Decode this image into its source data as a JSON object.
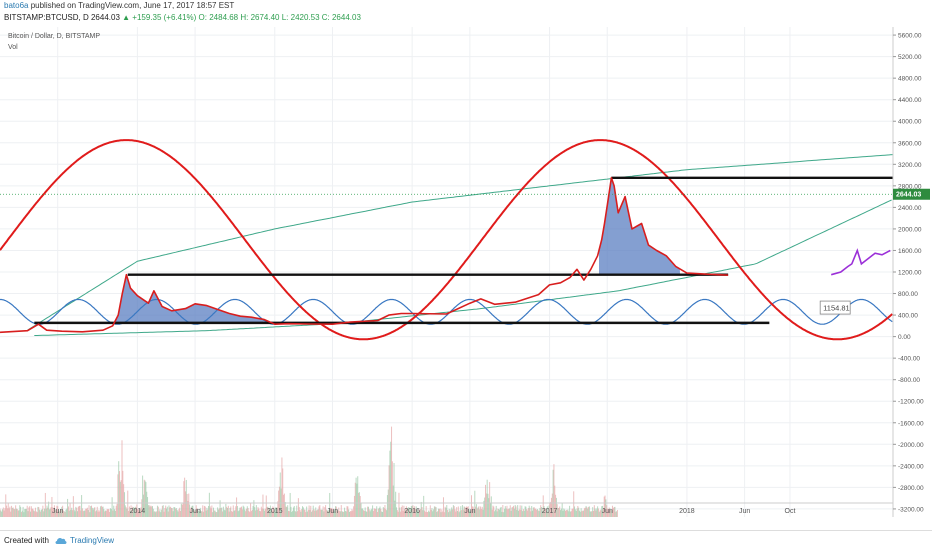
{
  "header": {
    "user": "bato6a",
    "published": "published on TradingView.com, June 17, 2017 18:57 EST",
    "symbol_line": "BITSTAMP:BTCUSD, D  2644.03",
    "change": "▲ +159.35 (+6.41%)",
    "ohlc": "O: 2484.68  H: 2674.40  L: 2420.53  C: 2644.03"
  },
  "legend": {
    "title": "Bitcoin / Dollar, D, BITSTAMP",
    "vol": "Vol"
  },
  "footer": {
    "created": "Created with",
    "brand": "TradingView"
  },
  "colors": {
    "price": "#d81e1e",
    "cycle": "#e01b1b",
    "wave": "#3a78c2",
    "arc": "#3fa88a",
    "fill": "#5b7fc2",
    "projection": "#9b30d8",
    "volume": "#9cc9a8"
  },
  "chart_data": {
    "type": "line",
    "symbol": "BITSTAMP:BTCUSD",
    "timeframe": "D",
    "yaxis": {
      "ticks": [
        "5600.00",
        "5200.00",
        "4800.00",
        "4400.00",
        "4000.00",
        "3600.00",
        "3200.00",
        "2800.00",
        "2400.00",
        "2000.00",
        "1600.00",
        "1200.00",
        "800.00",
        "400.00",
        "0.00",
        "-400.00",
        "-800.00",
        "-1200.00",
        "-1600.00",
        "-2000.00",
        "-2400.00",
        "-2800.00",
        "-3200.00"
      ],
      "ylim": [
        -3350,
        5750
      ]
    },
    "xaxis": {
      "ticks": [
        "Jun",
        "2014",
        "Jun",
        "2015",
        "Jun",
        "2016",
        "Jun",
        "2017",
        "Jun",
        "2018",
        "Jun",
        "Oct"
      ],
      "tick_dates": [
        2013.42,
        2014.0,
        2014.42,
        2015.0,
        2015.42,
        2016.0,
        2016.42,
        2017.0,
        2017.42,
        2018.0,
        2018.42,
        2018.75
      ],
      "xlim": [
        2013.0,
        2019.5
      ]
    },
    "last_price_label": "2644.03",
    "annotation": "1154.81",
    "series": [
      {
        "kind": "price",
        "points": [
          [
            2013.0,
            80
          ],
          [
            2013.2,
            110
          ],
          [
            2013.28,
            230
          ],
          [
            2013.34,
            120
          ],
          [
            2013.45,
            100
          ],
          [
            2013.6,
            90
          ],
          [
            2013.75,
            120
          ],
          [
            2013.82,
            200
          ],
          [
            2013.86,
            400
          ],
          [
            2013.89,
            800
          ],
          [
            2013.92,
            1150
          ],
          [
            2013.95,
            900
          ],
          [
            2014.0,
            760
          ],
          [
            2014.08,
            620
          ],
          [
            2014.12,
            850
          ],
          [
            2014.18,
            560
          ],
          [
            2014.25,
            480
          ],
          [
            2014.35,
            520
          ],
          [
            2014.42,
            610
          ],
          [
            2014.5,
            580
          ],
          [
            2014.58,
            510
          ],
          [
            2014.67,
            430
          ],
          [
            2014.75,
            380
          ],
          [
            2014.83,
            360
          ],
          [
            2014.92,
            320
          ],
          [
            2015.0,
            230
          ],
          [
            2015.1,
            240
          ],
          [
            2015.25,
            235
          ],
          [
            2015.42,
            230
          ],
          [
            2015.55,
            270
          ],
          [
            2015.75,
            300
          ],
          [
            2015.83,
            400
          ],
          [
            2015.92,
            430
          ],
          [
            2016.0,
            430
          ],
          [
            2016.25,
            420
          ],
          [
            2016.42,
            620
          ],
          [
            2016.5,
            700
          ],
          [
            2016.6,
            600
          ],
          [
            2016.75,
            640
          ],
          [
            2016.92,
            780
          ],
          [
            2017.0,
            960
          ],
          [
            2017.08,
            1000
          ],
          [
            2017.15,
            1100
          ],
          [
            2017.2,
            1250
          ],
          [
            2017.25,
            1050
          ],
          [
            2017.3,
            1250
          ],
          [
            2017.35,
            1500
          ],
          [
            2017.38,
            1800
          ],
          [
            2017.4,
            2100
          ],
          [
            2017.43,
            2600
          ],
          [
            2017.45,
            2950
          ],
          [
            2017.47,
            2800
          ],
          [
            2017.5,
            2300
          ],
          [
            2017.55,
            2600
          ],
          [
            2017.6,
            2000
          ],
          [
            2017.67,
            2100
          ],
          [
            2017.72,
            1700
          ],
          [
            2017.78,
            1600
          ],
          [
            2017.85,
            1500
          ],
          [
            2017.92,
            1300
          ],
          [
            2018.0,
            1180
          ],
          [
            2018.15,
            1160
          ],
          [
            2018.3,
            1140
          ]
        ]
      },
      {
        "kind": "projection",
        "points": [
          [
            2019.05,
            1150
          ],
          [
            2019.12,
            1200
          ],
          [
            2019.17,
            1300
          ],
          [
            2019.2,
            1350
          ],
          [
            2019.24,
            1600
          ],
          [
            2019.27,
            1350
          ],
          [
            2019.32,
            1450
          ],
          [
            2019.37,
            1550
          ],
          [
            2019.42,
            1520
          ],
          [
            2019.48,
            1600
          ]
        ]
      },
      {
        "kind": "horizontal_levels",
        "levels": [
          {
            "value": 2950,
            "from": 2017.45,
            "to": 2019.5
          },
          {
            "value": 1150,
            "from": 2013.93,
            "to": 2018.3
          },
          {
            "value": 255,
            "from": 2013.25,
            "to": 2018.6
          }
        ]
      },
      {
        "kind": "cycle",
        "center": 1800,
        "amplitude": 1850,
        "period": 3.45,
        "peak_at": 2013.92
      },
      {
        "kind": "wave",
        "center": 460,
        "amplitude": 230,
        "period": 0.57,
        "peak_at": 2013.0
      },
      {
        "kind": "arcs",
        "arcs": [
          {
            "points": [
              [
                2013.2,
                120
              ],
              [
                2014.0,
                1400
              ],
              [
                2015.0,
                2000
              ],
              [
                2016.0,
                2500
              ],
              [
                2017.0,
                2800
              ],
              [
                2018.0,
                3100
              ],
              [
                2019.5,
                3380
              ]
            ]
          },
          {
            "points": [
              [
                2013.25,
                20
              ],
              [
                2014.5,
                110
              ],
              [
                2015.5,
                250
              ],
              [
                2016.5,
                520
              ],
              [
                2017.5,
                850
              ],
              [
                2018.5,
                1350
              ],
              [
                2019.5,
                2550
              ]
            ]
          }
        ]
      },
      {
        "kind": "volume",
        "peaks": [
          [
            2013.88,
            0.8
          ],
          [
            2014.05,
            0.45
          ],
          [
            2014.35,
            0.5
          ],
          [
            2015.05,
            0.55
          ],
          [
            2015.6,
            0.42
          ],
          [
            2015.85,
            0.85
          ],
          [
            2016.55,
            0.48
          ],
          [
            2017.03,
            0.45
          ],
          [
            2017.4,
            0.2
          ]
        ]
      }
    ]
  }
}
